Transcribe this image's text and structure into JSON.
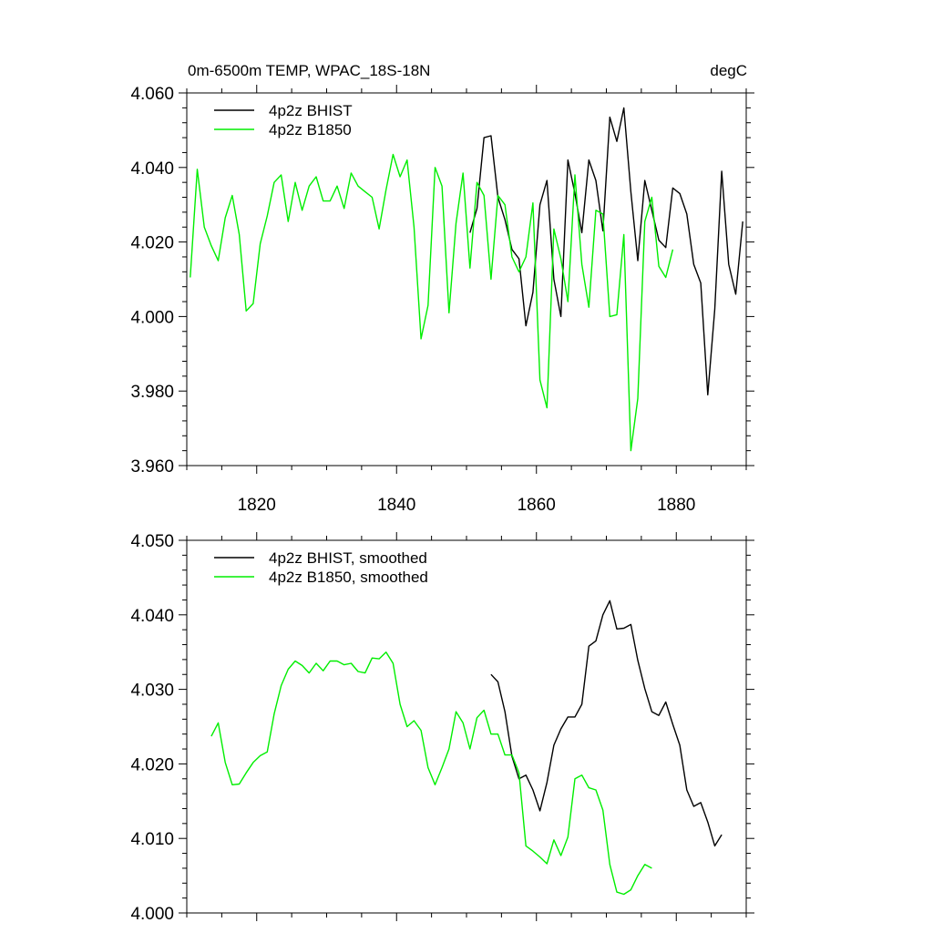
{
  "chart_data": [
    {
      "type": "line",
      "title_left": "0m-6500m TEMP, WPAC_18S-18N",
      "title_right": "degC",
      "ylim": [
        3.96,
        4.06
      ],
      "xlim": [
        1810,
        1890
      ],
      "yticks": [
        3.96,
        3.98,
        4.0,
        4.02,
        4.04,
        4.06
      ],
      "ytick_labels": [
        "3.960",
        "3.980",
        "4.000",
        "4.020",
        "4.040",
        "4.060"
      ],
      "xticks": [
        1820,
        1840,
        1860,
        1880
      ],
      "xtick_labels": [
        "1820",
        "1840",
        "1860",
        "1880"
      ],
      "legend_position": "top-left",
      "series": [
        {
          "name": "4p2z BHIST",
          "color": "#000000",
          "x": [
            1850.5,
            1851.5,
            1852.5,
            1853.5,
            1854.5,
            1855.5,
            1856.5,
            1857.5,
            1858.5,
            1859.5,
            1860.5,
            1861.5,
            1862.5,
            1863.5,
            1864.5,
            1865.5,
            1866.5,
            1867.5,
            1868.5,
            1869.5,
            1870.5,
            1871.5,
            1872.5,
            1873.5,
            1874.5,
            1875.5,
            1876.5,
            1877.5,
            1878.5,
            1879.5,
            1880.5,
            1881.5,
            1882.5,
            1883.5,
            1884.5,
            1885.5,
            1886.5,
            1887.5,
            1888.5,
            1889.5
          ],
          "y": [
            4.0225,
            4.029,
            4.048,
            4.0485,
            4.032,
            4.026,
            4.018,
            4.0155,
            3.9975,
            4.0065,
            4.03,
            4.0365,
            4.01,
            4.0,
            4.042,
            4.033,
            4.0225,
            4.042,
            4.0365,
            4.023,
            4.0535,
            4.047,
            4.056,
            4.0335,
            4.015,
            4.0365,
            4.0285,
            4.0205,
            4.0185,
            4.0345,
            4.033,
            4.0275,
            4.014,
            4.009,
            3.979,
            4.002,
            4.039,
            4.014,
            4.006,
            4.0255
          ]
        },
        {
          "name": "4p2z B1850",
          "color": "#00ee00",
          "x": [
            1810.5,
            1811.5,
            1812.5,
            1813.5,
            1814.5,
            1815.5,
            1816.5,
            1817.5,
            1818.5,
            1819.5,
            1820.5,
            1821.5,
            1822.5,
            1823.5,
            1824.5,
            1825.5,
            1826.5,
            1827.5,
            1828.5,
            1829.5,
            1830.5,
            1831.5,
            1832.5,
            1833.5,
            1834.5,
            1835.5,
            1836.5,
            1837.5,
            1838.5,
            1839.5,
            1840.5,
            1841.5,
            1842.5,
            1843.5,
            1844.5,
            1845.5,
            1846.5,
            1847.5,
            1848.5,
            1849.5,
            1850.5,
            1851.5,
            1852.5,
            1853.5,
            1854.5,
            1855.5,
            1856.5,
            1857.5,
            1858.5,
            1859.5,
            1860.5,
            1861.5,
            1862.5,
            1863.5,
            1864.5,
            1865.5,
            1866.5,
            1867.5,
            1868.5,
            1869.5,
            1870.5,
            1871.5,
            1872.5,
            1873.5,
            1874.5,
            1875.5,
            1876.5,
            1877.5,
            1878.5,
            1879.5
          ],
          "y": [
            4.0105,
            4.0395,
            4.024,
            4.019,
            4.015,
            4.0265,
            4.0325,
            4.022,
            4.0015,
            4.0035,
            4.0195,
            4.027,
            4.036,
            4.038,
            4.0255,
            4.036,
            4.0285,
            4.035,
            4.0375,
            4.031,
            4.031,
            4.035,
            4.029,
            4.0385,
            4.035,
            4.0335,
            4.032,
            4.0235,
            4.034,
            4.0435,
            4.0375,
            4.042,
            4.024,
            3.994,
            4.003,
            4.04,
            4.035,
            4.001,
            4.025,
            4.0385,
            4.013,
            4.036,
            4.0325,
            4.01,
            4.0325,
            4.03,
            4.016,
            4.012,
            4.016,
            4.0305,
            3.983,
            3.9755,
            4.0235,
            4.0155,
            4.004,
            4.038,
            4.014,
            4.0025,
            4.0285,
            4.0275,
            4.0,
            4.0005,
            4.022,
            3.964,
            3.978,
            4.0255,
            4.032,
            4.0135,
            4.0105,
            4.018
          ]
        }
      ]
    },
    {
      "type": "line",
      "ylim": [
        4.0,
        4.05
      ],
      "xlim": [
        1810,
        1890
      ],
      "yticks": [
        4.0,
        4.01,
        4.02,
        4.03,
        4.04,
        4.05
      ],
      "ytick_labels": [
        "4.000",
        "4.010",
        "4.020",
        "4.030",
        "4.040",
        "4.050"
      ],
      "xticks": [
        1820,
        1840,
        1860,
        1880
      ],
      "legend_position": "top-left",
      "series": [
        {
          "name": "4p2z BHIST, smoothed",
          "color": "#000000",
          "x": [
            1853.5,
            1854.5,
            1855.5,
            1856.5,
            1857.5,
            1858.5,
            1859.5,
            1860.5,
            1861.5,
            1862.5,
            1863.5,
            1864.5,
            1865.5,
            1866.5,
            1867.5,
            1868.5,
            1869.5,
            1870.5,
            1871.5,
            1872.5,
            1873.5,
            1874.5,
            1875.5,
            1876.5,
            1877.5,
            1878.5,
            1879.5,
            1880.5,
            1881.5,
            1882.5,
            1883.5,
            1884.5,
            1885.5,
            1886.5
          ],
          "y": [
            4.032,
            4.031,
            4.027,
            4.021,
            4.018,
            4.0185,
            4.0165,
            4.0137,
            4.0175,
            4.0225,
            4.0247,
            4.0263,
            4.0263,
            4.028,
            4.0358,
            4.0365,
            4.04,
            4.0419,
            4.0381,
            4.0382,
            4.0387,
            4.0339,
            4.0301,
            4.027,
            4.0265,
            4.0283,
            4.0253,
            4.0225,
            4.0165,
            4.0143,
            4.0148,
            4.0122,
            4.009,
            4.0105
          ]
        },
        {
          "name": "4p2z B1850, smoothed",
          "color": "#00ee00",
          "x": [
            1813.5,
            1814.5,
            1815.5,
            1816.5,
            1817.5,
            1818.5,
            1819.5,
            1820.5,
            1821.5,
            1822.5,
            1823.5,
            1824.5,
            1825.5,
            1826.5,
            1827.5,
            1828.5,
            1829.5,
            1830.5,
            1831.5,
            1832.5,
            1833.5,
            1834.5,
            1835.5,
            1836.5,
            1837.5,
            1838.5,
            1839.5,
            1840.5,
            1841.5,
            1842.5,
            1843.5,
            1844.5,
            1845.5,
            1846.5,
            1847.5,
            1848.5,
            1849.5,
            1850.5,
            1851.5,
            1852.5,
            1853.5,
            1854.5,
            1855.5,
            1856.5,
            1857.5,
            1858.5,
            1859.5,
            1860.5,
            1861.5,
            1862.5,
            1863.5,
            1864.5,
            1865.5,
            1866.5,
            1867.5,
            1868.5,
            1869.5,
            1870.5,
            1871.5,
            1872.5,
            1873.5,
            1874.5,
            1875.5,
            1876.5
          ],
          "y": [
            4.0237,
            4.0255,
            4.0202,
            4.0172,
            4.0173,
            4.0188,
            4.0202,
            4.0211,
            4.0216,
            4.0267,
            4.0305,
            4.0327,
            4.0338,
            4.0332,
            4.0322,
            4.0335,
            4.0325,
            4.0338,
            4.0338,
            4.0333,
            4.0335,
            4.0324,
            4.0322,
            4.0342,
            4.0341,
            4.035,
            4.0335,
            4.028,
            4.025,
            4.0258,
            4.0245,
            4.0195,
            4.0172,
            4.0195,
            4.022,
            4.027,
            4.0255,
            4.022,
            4.0262,
            4.0272,
            4.024,
            4.024,
            4.0212,
            4.0212,
            4.0188,
            4.009,
            4.0083,
            4.0075,
            4.0066,
            4.0098,
            4.0077,
            4.0102,
            4.018,
            4.0185,
            4.0168,
            4.0165,
            4.0138,
            4.0065,
            4.0028,
            4.0025,
            4.0031,
            4.005,
            4.0065,
            4.006
          ]
        }
      ]
    }
  ]
}
